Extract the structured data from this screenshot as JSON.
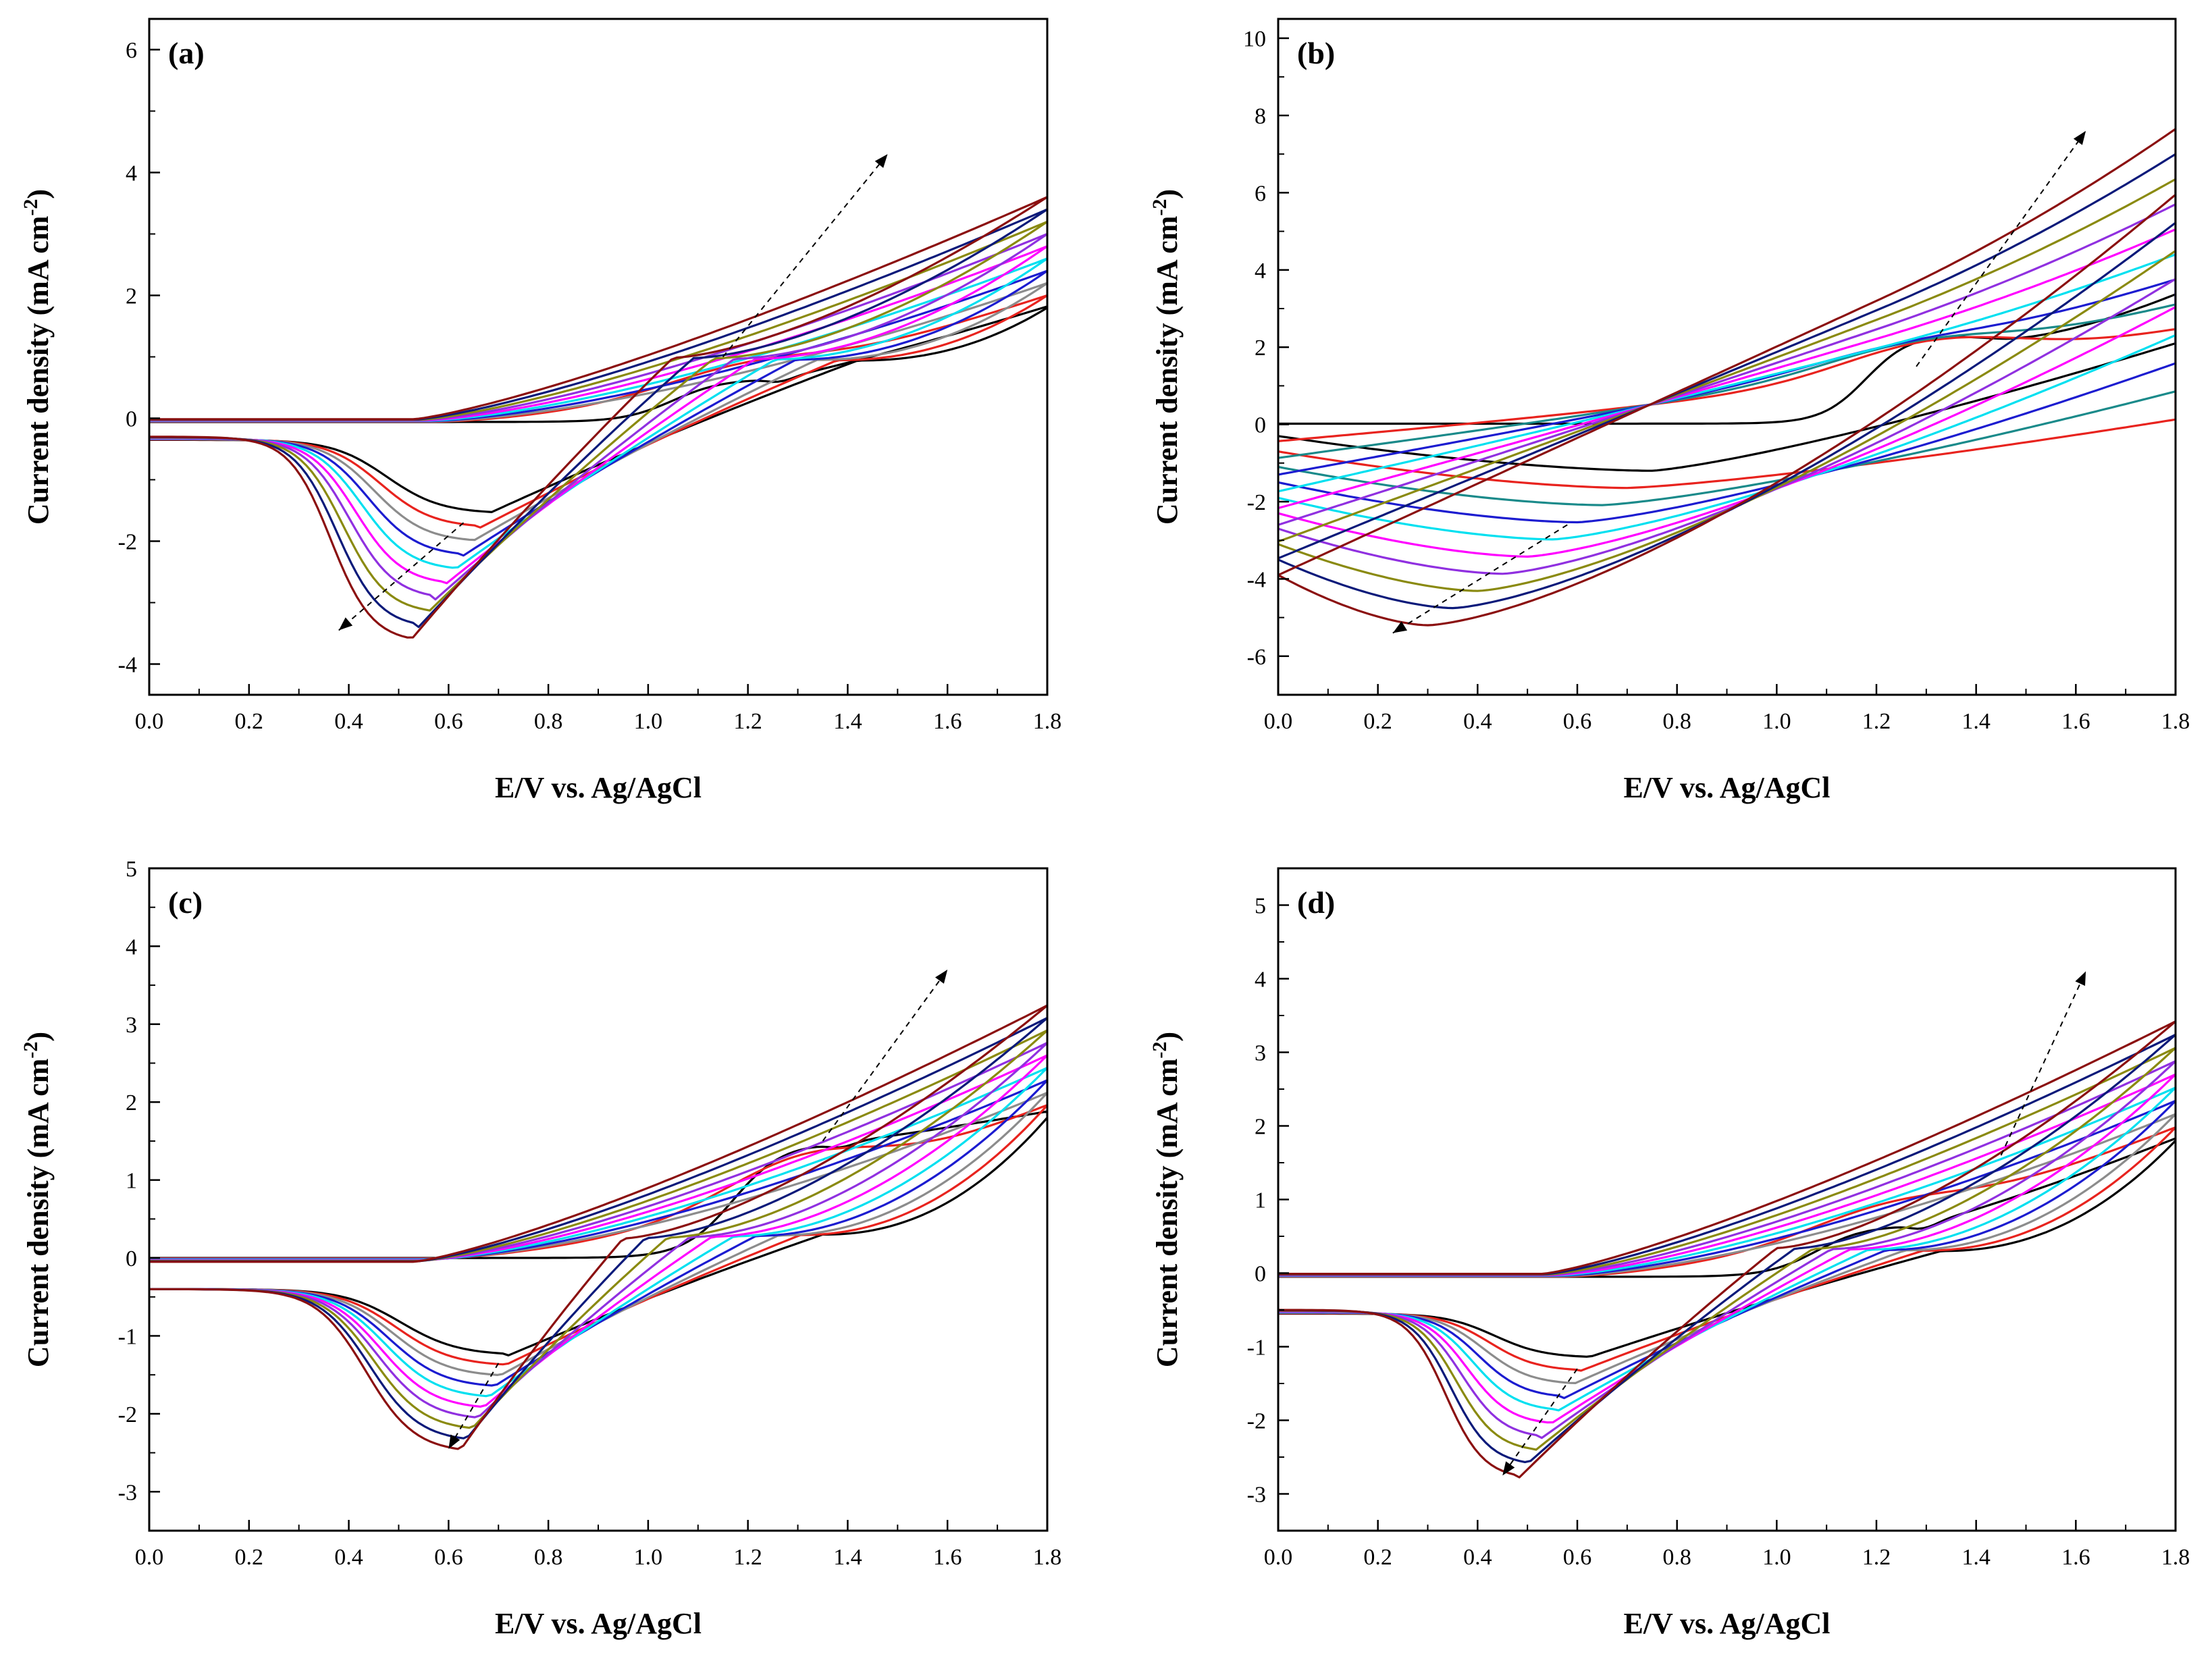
{
  "chart_data": [
    {
      "panel": "(a)",
      "type": "line",
      "title": "",
      "xlabel": "E/V vs. Ag/AgCl",
      "ylabel": "Current density (mA cm",
      "ylabel_sup": "-2",
      "ylabel_close": ")",
      "xlim": [
        0,
        1.8
      ],
      "ylim": [
        -4.5,
        6.5
      ],
      "xticks": [
        "0.0",
        "0.2",
        "0.4",
        "0.6",
        "0.8",
        "1.0",
        "1.2",
        "1.4",
        "1.6",
        "1.8"
      ],
      "yticks": [
        "-4",
        "-2",
        "0",
        "2",
        "4",
        "6"
      ],
      "cycles": 10,
      "forward": {
        "vertex": [
          1.8,
          3.7
        ],
        "vertex_step": 0.2,
        "baseline": [
          -0.06,
          -0.015
        ],
        "oxidation_knee": [
          1.25,
          1.0
        ],
        "high_scale": [
          0.5,
          0.08
        ]
      },
      "reverse": {
        "start": [
          -0.35,
          -0.3
        ],
        "peak_x": [
          0.68,
          0.52
        ],
        "peak_y": [
          -1.55,
          -3.65
        ],
        "crossover": [
          1.42,
          1.05
        ]
      },
      "first_cycle_shoulder": [
        1.23,
        0.62
      ],
      "trend_lines": [
        {
          "from": [
            1.15,
            1.0
          ],
          "to": [
            1.48,
            4.3
          ]
        },
        {
          "from": [
            0.63,
            -1.7
          ],
          "to": [
            0.38,
            -3.45
          ]
        }
      ]
    },
    {
      "panel": "(b)",
      "type": "line",
      "title": "",
      "xlabel": "E/V vs. Ag/AgCl",
      "ylabel": "Current density (mA cm",
      "ylabel_sup": "-2",
      "ylabel_close": ")",
      "xlim": [
        0,
        1.8
      ],
      "ylim": [
        -7,
        10.5
      ],
      "xticks": [
        "0.0",
        "0.2",
        "0.4",
        "0.6",
        "0.8",
        "1.0",
        "1.2",
        "1.4",
        "1.6",
        "1.8"
      ],
      "yticks": [
        "-6",
        "-4",
        "-2",
        "0",
        "2",
        "4",
        "6",
        "8",
        "10"
      ],
      "cycles": 10,
      "forward": {
        "start": [
          0.0,
          -3.9
        ],
        "vertex": [
          1.8,
          3.5
        ],
        "vertex_step": 0.55,
        "mid": [
          2.3,
          4.2
        ],
        "oxidation_peak": [
          1.33,
          2.4
        ]
      },
      "reverse": {
        "peak_x": [
          0.75,
          0.3
        ],
        "peak_y": [
          -1.2,
          -5.2
        ],
        "end": [
          -0.3,
          -3.9
        ]
      },
      "trend_lines": [
        {
          "from": [
            1.28,
            1.5
          ],
          "to": [
            1.62,
            7.6
          ]
        },
        {
          "from": [
            0.58,
            -2.6
          ],
          "to": [
            0.23,
            -5.4
          ]
        }
      ]
    },
    {
      "panel": "(c)",
      "type": "line",
      "title": "",
      "xlabel": "E/V vs. Ag/AgCl",
      "ylabel": "Current density (mA cm",
      "ylabel_sup": "-2",
      "ylabel_close": ")",
      "xlim": [
        0,
        1.8
      ],
      "ylim": [
        -3.5,
        5
      ],
      "xticks": [
        "0.0",
        "0.2",
        "0.4",
        "0.6",
        "0.8",
        "1.0",
        "1.2",
        "1.4",
        "1.6",
        "1.8"
      ],
      "yticks": [
        "-3",
        "-2",
        "-1",
        "0",
        "1",
        "2",
        "3",
        "4",
        "5"
      ],
      "cycles": 10,
      "forward": {
        "vertex": [
          1.8,
          2.6
        ],
        "vertex_step": 0.16,
        "baseline": [
          0.0,
          -0.05
        ],
        "oxidation_knee": [
          1.5,
          1.1
        ],
        "high_scale": [
          0.35,
          0.05
        ]
      },
      "reverse": {
        "start": [
          -0.4,
          -0.4
        ],
        "peak_x": [
          0.72,
          0.62
        ],
        "peak_y": [
          -1.25,
          -2.5
        ],
        "crossover": [
          1.35,
          0.95
        ]
      },
      "first_cycle_shoulder": [
        1.35,
        1.4
      ],
      "trend_lines": [
        {
          "from": [
            1.35,
            1.5
          ],
          "to": [
            1.6,
            3.7
          ]
        },
        {
          "from": [
            0.7,
            -1.35
          ],
          "to": [
            0.6,
            -2.45
          ]
        }
      ]
    },
    {
      "panel": "(d)",
      "type": "line",
      "title": "",
      "xlabel": "E/V vs. Ag/AgCl",
      "ylabel": "Current density (mA cm",
      "ylabel_sup": "-2",
      "ylabel_close": ")",
      "xlim": [
        0,
        1.8
      ],
      "ylim": [
        -3.5,
        5.5
      ],
      "xticks": [
        "0.0",
        "0.2",
        "0.4",
        "0.6",
        "0.8",
        "1.0",
        "1.2",
        "1.4",
        "1.6",
        "1.8"
      ],
      "yticks": [
        "-3",
        "-2",
        "-1",
        "0",
        "1",
        "2",
        "3",
        "4",
        "5"
      ],
      "cycles": 10,
      "forward": {
        "vertex": [
          1.8,
          2.9
        ],
        "vertex_step": 0.18,
        "baseline": [
          -0.05,
          -0.01
        ],
        "oxidation_knee": [
          1.3,
          1.0
        ],
        "high_scale": [
          0.4,
          0.06
        ]
      },
      "reverse": {
        "start": [
          -0.55,
          -0.5
        ],
        "peak_x": [
          0.62,
          0.48
        ],
        "peak_y": [
          -1.15,
          -2.8
        ],
        "crossover": [
          1.33,
          1.0
        ]
      },
      "first_cycle_shoulder": [
        1.26,
        0.62
      ],
      "trend_lines": [
        {
          "from": [
            1.45,
            1.6
          ],
          "to": [
            1.62,
            4.1
          ]
        },
        {
          "from": [
            0.6,
            -1.3
          ],
          "to": [
            0.45,
            -2.75
          ]
        }
      ]
    }
  ],
  "series_colors": [
    "#000000",
    "#e8231e",
    "#8c8c8c",
    "#1c1cd0",
    "#00e0f0",
    "#ff00ff",
    "#9030e0",
    "#8a8a10",
    "#0b1a7a",
    "#8b1010"
  ],
  "panel_b_colors": [
    "#000000",
    "#e8231e",
    "#1a8a8a",
    "#1c1cd0",
    "#00e0f0",
    "#ff00ff",
    "#9030e0",
    "#8a8a10",
    "#0b1a7a",
    "#8b1010"
  ]
}
